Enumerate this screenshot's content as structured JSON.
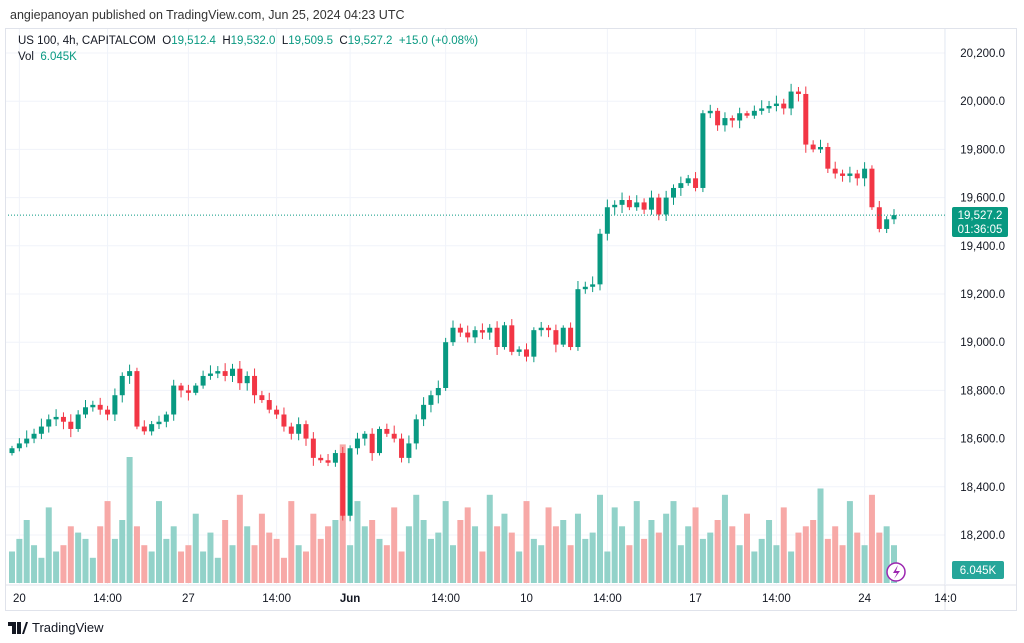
{
  "published": "angiepanoyan published on TradingView.com, Jun 25, 2024 04:23 UTC",
  "legend": {
    "symbol": "US 100, 4h, CAPITALCOM",
    "o_label": "O",
    "o": "19,512.4",
    "h_label": "H",
    "h": "19,532.0",
    "l_label": "L",
    "l": "19,509.5",
    "c_label": "C",
    "c": "19,527.2",
    "change": "+15.0 (+0.08%)",
    "vol_label": "Vol",
    "vol": "6.045K"
  },
  "price_badge": {
    "price": "19,527.2",
    "countdown": "01:36:05"
  },
  "volume_badge": "6.045K",
  "footer_brand": "TradingView",
  "colors": {
    "up": "#089981",
    "down": "#f23645",
    "vol_up": "#92d2c9",
    "vol_down": "#f7a9a7"
  },
  "chart_data": {
    "type": "candlestick",
    "ylim": [
      18100,
      20250
    ],
    "y_ticks": [
      "20,200.0",
      "20,000.0",
      "19,800.0",
      "19,600.0",
      "19,400.0",
      "19,200.0",
      "19,000.0",
      "18,800.0",
      "18,600.0",
      "18,400.0",
      "18,200.0"
    ],
    "y_tick_values": [
      20200,
      20000,
      19800,
      19600,
      19400,
      19200,
      19000,
      18800,
      18600,
      18400,
      18200
    ],
    "x_ticks": [
      {
        "label": "20",
        "i": 1
      },
      {
        "label": "14:00",
        "i": 13
      },
      {
        "label": "27",
        "i": 24
      },
      {
        "label": "14:00",
        "i": 36
      },
      {
        "label": "Jun",
        "i": 46,
        "bold": true
      },
      {
        "label": "14:00",
        "i": 59
      },
      {
        "label": "10",
        "i": 70
      },
      {
        "label": "14:00",
        "i": 81
      },
      {
        "label": "17",
        "i": 93
      },
      {
        "label": "14:00",
        "i": 104
      },
      {
        "label": "24",
        "i": 116
      },
      {
        "label": "14:0",
        "i": 127
      }
    ],
    "first_open": 18540,
    "close": [
      18560,
      18580,
      18600,
      18620,
      18650,
      18680,
      18690,
      18670,
      18640,
      18700,
      18730,
      18740,
      18720,
      18700,
      18780,
      18860,
      18880,
      18650,
      18630,
      18660,
      18670,
      18700,
      18820,
      18800,
      18790,
      18820,
      18860,
      18870,
      18880,
      18860,
      18890,
      18830,
      18860,
      18780,
      18760,
      18720,
      18700,
      18650,
      18620,
      18660,
      18600,
      18520,
      18510,
      18500,
      18540,
      18280,
      18560,
      18600,
      18620,
      18540,
      18640,
      18620,
      18600,
      18520,
      18580,
      18680,
      18740,
      18780,
      18810,
      19000,
      19060,
      19040,
      19020,
      19050,
      19040,
      19060,
      18980,
      19070,
      18960,
      18970,
      18940,
      19050,
      19060,
      19050,
      18990,
      19060,
      18980,
      19220,
      19230,
      19240,
      19450,
      19560,
      19570,
      19590,
      19560,
      19580,
      19550,
      19600,
      19530,
      19600,
      19640,
      19660,
      19680,
      19640,
      19950,
      19960,
      19900,
      19930,
      19920,
      19950,
      19940,
      19960,
      19970,
      19980,
      19990,
      19970,
      20040,
      20030,
      19820,
      19800,
      19810,
      19720,
      19700,
      19690,
      19700,
      19680,
      19720,
      19560,
      19470,
      19510,
      19527.2
    ],
    "volume_k": [
      5,
      7,
      10,
      6,
      4,
      12,
      5,
      6,
      9,
      8,
      7,
      4,
      9,
      13,
      7,
      10,
      20,
      9,
      6,
      5,
      13,
      7,
      9,
      5,
      6,
      11,
      5,
      8,
      4,
      10,
      6,
      14,
      9,
      6,
      11,
      8,
      7,
      4,
      13,
      6,
      5,
      11,
      7,
      9,
      10,
      22,
      6,
      13,
      9,
      10,
      7,
      6,
      12,
      5,
      9,
      14,
      10,
      7,
      8,
      13,
      6,
      10,
      12,
      9,
      5,
      14,
      9,
      11,
      8,
      5,
      13,
      7,
      6,
      12,
      9,
      10,
      6,
      11,
      7,
      8,
      14,
      5,
      12,
      9,
      6,
      13,
      7,
      10,
      8,
      11,
      13,
      6,
      9,
      12,
      7,
      8,
      10,
      14,
      9,
      6,
      11,
      5,
      7,
      10,
      6,
      12,
      5,
      8,
      9,
      10,
      15,
      7,
      9,
      6,
      13,
      8,
      6,
      14,
      8,
      9,
      6
    ]
  }
}
